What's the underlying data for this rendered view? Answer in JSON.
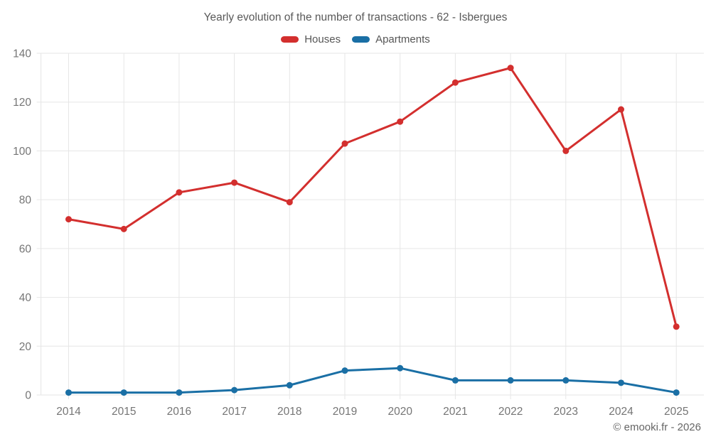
{
  "footer": {
    "credit": "© emooki.fr - 2026"
  },
  "colors": {
    "houses": "#d32f2e",
    "apartments": "#1a6fa5",
    "grid": "#e6e6e6",
    "axis_text": "#757575",
    "title_text": "#595959",
    "background": "#ffffff"
  },
  "chart_data": {
    "type": "line",
    "title": "Yearly evolution of the number of transactions - 62 - Isbergues",
    "categories": [
      "2014",
      "2015",
      "2016",
      "2017",
      "2018",
      "2019",
      "2020",
      "2021",
      "2022",
      "2023",
      "2024",
      "2025"
    ],
    "series": [
      {
        "name": "Houses",
        "color": "#d32f2e",
        "values": [
          72,
          68,
          83,
          87,
          79,
          103,
          112,
          128,
          134,
          100,
          117,
          28
        ]
      },
      {
        "name": "Apartments",
        "color": "#1a6fa5",
        "values": [
          1,
          1,
          1,
          2,
          4,
          10,
          11,
          6,
          6,
          6,
          5,
          1
        ]
      }
    ],
    "xlabel": "",
    "ylabel": "",
    "ylim": [
      0,
      140
    ],
    "yticks": [
      0,
      20,
      40,
      60,
      80,
      100,
      120,
      140
    ],
    "grid": true,
    "legend_position": "top",
    "marker": "circle"
  }
}
